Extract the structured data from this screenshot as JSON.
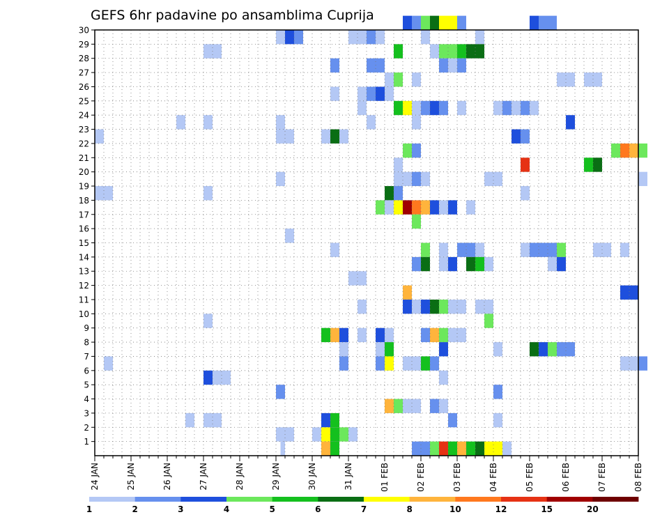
{
  "chart_data": {
    "type": "heatmap",
    "title": "GEFS 6hr padavine po ansamblima Cuprija",
    "xlabel": "",
    "ylabel": "",
    "x_ticks": [
      "24 JAN",
      "25 JAN",
      "26 JAN",
      "27 JAN",
      "28 JAN",
      "29 JAN",
      "30 JAN",
      "31 JAN",
      "01 FEB",
      "02 FEB",
      "03 FEB",
      "04 FEB",
      "05 FEB",
      "06 FEB",
      "07 FEB",
      "08 FEB"
    ],
    "y_ticks": [
      "1",
      "2",
      "3",
      "4",
      "5",
      "6",
      "7",
      "8",
      "9",
      "10",
      "11",
      "12",
      "13",
      "14",
      "15",
      "16",
      "17",
      "18",
      "19",
      "20",
      "21",
      "22",
      "23",
      "24",
      "25",
      "26",
      "27",
      "28",
      "29",
      "30"
    ],
    "x_step_hours": 6,
    "grid": true,
    "legend": "colorbar-bottom",
    "colorbar": {
      "levels": [
        "1",
        "2",
        "3",
        "4",
        "5",
        "6",
        "7",
        "8",
        "10",
        "12",
        "15",
        "20"
      ],
      "colors": [
        "#b4c8f5",
        "#6690ee",
        "#1e4fdd",
        "#6ce85c",
        "#14c01e",
        "#0a6e14",
        "#ffff00",
        "#ffb43c",
        "#ff781e",
        "#e63214",
        "#a00000",
        "#6e0000"
      ]
    },
    "cells": [
      {
        "m": 30,
        "x": [
          [
            34.0,
            35.0,
            3
          ],
          [
            35.0,
            36.0,
            2
          ],
          [
            36.0,
            37.0,
            4
          ],
          [
            37.0,
            38.0,
            6
          ],
          [
            38.0,
            40.0,
            7
          ],
          [
            40.0,
            41.0,
            2
          ],
          [
            48.0,
            49.0,
            3
          ],
          [
            49.0,
            51.0,
            2
          ]
        ]
      },
      {
        "m": 29,
        "x": [
          [
            20.0,
            21.0,
            1
          ],
          [
            21.0,
            22.0,
            3
          ],
          [
            22.0,
            23.0,
            2
          ],
          [
            28.0,
            30.0,
            1
          ],
          [
            30.0,
            31.0,
            2
          ],
          [
            31.0,
            32.0,
            1
          ],
          [
            36.0,
            37.0,
            1
          ],
          [
            42.0,
            43.0,
            1
          ]
        ]
      },
      {
        "m": 28,
        "x": [
          [
            12.0,
            14.0,
            1
          ],
          [
            33.0,
            34.0,
            5
          ],
          [
            37.0,
            38.0,
            1
          ],
          [
            38.0,
            40.0,
            4
          ],
          [
            40.0,
            41.0,
            5
          ],
          [
            41.0,
            43.0,
            6
          ]
        ]
      },
      {
        "m": 27,
        "x": [
          [
            26.0,
            27.0,
            2
          ],
          [
            30.0,
            32.0,
            2
          ],
          [
            38.0,
            39.0,
            2
          ],
          [
            39.0,
            40.0,
            1
          ],
          [
            40.0,
            41.0,
            2
          ]
        ]
      },
      {
        "m": 26,
        "x": [
          [
            32.0,
            33.0,
            1
          ],
          [
            33.0,
            34.0,
            4
          ],
          [
            35.0,
            36.0,
            1
          ],
          [
            51.0,
            53.0,
            1
          ],
          [
            54.0,
            56.0,
            1
          ]
        ]
      },
      {
        "m": 25,
        "x": [
          [
            26.0,
            27.0,
            1
          ],
          [
            29.0,
            30.0,
            1
          ],
          [
            30.0,
            31.0,
            2
          ],
          [
            31.0,
            32.0,
            3
          ],
          [
            32.0,
            33.0,
            1
          ]
        ]
      },
      {
        "m": 24,
        "x": [
          [
            29.0,
            30.0,
            1
          ],
          [
            33.0,
            34.0,
            5
          ],
          [
            34.0,
            35.0,
            7
          ],
          [
            35.0,
            36.0,
            1
          ],
          [
            36.0,
            37.0,
            2
          ],
          [
            37.0,
            38.0,
            3
          ],
          [
            38.0,
            39.0,
            2
          ],
          [
            40.0,
            41.0,
            1
          ],
          [
            44.0,
            45.0,
            1
          ],
          [
            45.0,
            46.0,
            2
          ],
          [
            46.0,
            47.0,
            1
          ],
          [
            47.0,
            48.0,
            2
          ],
          [
            48.0,
            49.0,
            1
          ]
        ]
      },
      {
        "m": 23,
        "x": [
          [
            9.0,
            10.0,
            1
          ],
          [
            12.0,
            13.0,
            1
          ],
          [
            20.0,
            21.0,
            1
          ],
          [
            30.0,
            31.0,
            1
          ],
          [
            35.0,
            36.0,
            1
          ],
          [
            52.0,
            53.0,
            3
          ]
        ]
      },
      {
        "m": 22,
        "x": [
          [
            0.0,
            1.0,
            1
          ],
          [
            20.0,
            22.0,
            1
          ],
          [
            25.0,
            26.0,
            1
          ],
          [
            26.0,
            27.0,
            6
          ],
          [
            27.0,
            28.0,
            1
          ],
          [
            46.0,
            47.0,
            3
          ],
          [
            47.0,
            48.0,
            2
          ]
        ]
      },
      {
        "m": 21,
        "x": [
          [
            34.0,
            35.0,
            4
          ],
          [
            35.0,
            36.0,
            2
          ],
          [
            57.0,
            58.0,
            4
          ],
          [
            58.0,
            59.0,
            9
          ],
          [
            59.0,
            60.0,
            8
          ],
          [
            60.0,
            61.0,
            4
          ]
        ]
      },
      {
        "m": 20,
        "x": [
          [
            33.0,
            34.0,
            1
          ],
          [
            47.0,
            48.0,
            10
          ],
          [
            54.0,
            55.0,
            5
          ],
          [
            55.0,
            56.0,
            6
          ]
        ]
      },
      {
        "m": 19,
        "x": [
          [
            20.0,
            21.0,
            1
          ],
          [
            33.0,
            35.0,
            1
          ],
          [
            35.0,
            36.0,
            2
          ],
          [
            36.0,
            37.0,
            1
          ],
          [
            43.0,
            45.0,
            1
          ],
          [
            60.0,
            61.0,
            1
          ]
        ]
      },
      {
        "m": 18,
        "x": [
          [
            0.0,
            2.0,
            1
          ],
          [
            12.0,
            13.0,
            1
          ],
          [
            32.0,
            33.0,
            6
          ],
          [
            33.0,
            34.0,
            2
          ],
          [
            47.0,
            48.0,
            1
          ]
        ]
      },
      {
        "m": 17,
        "x": [
          [
            31.0,
            32.0,
            4
          ],
          [
            32.0,
            33.0,
            1
          ],
          [
            33.0,
            34.0,
            7
          ],
          [
            34.0,
            35.0,
            11
          ],
          [
            35.0,
            36.0,
            9
          ],
          [
            36.0,
            37.0,
            8
          ],
          [
            37.0,
            38.0,
            3
          ],
          [
            38.0,
            39.0,
            1
          ],
          [
            39.0,
            40.0,
            3
          ],
          [
            41.0,
            42.0,
            1
          ]
        ]
      },
      {
        "m": 16,
        "x": [
          [
            35.0,
            36.0,
            4
          ]
        ]
      },
      {
        "m": 15,
        "x": [
          [
            21.0,
            22.0,
            1
          ]
        ]
      },
      {
        "m": 14,
        "x": [
          [
            26.0,
            27.0,
            1
          ],
          [
            36.0,
            37.0,
            4
          ],
          [
            38.0,
            39.0,
            1
          ],
          [
            40.0,
            42.0,
            2
          ],
          [
            42.0,
            43.0,
            1
          ],
          [
            47.0,
            48.0,
            1
          ],
          [
            48.0,
            51.0,
            2
          ],
          [
            51.0,
            52.0,
            4
          ],
          [
            55.0,
            57.0,
            1
          ],
          [
            58.0,
            59.0,
            1
          ]
        ]
      },
      {
        "m": 13,
        "x": [
          [
            35.0,
            36.0,
            2
          ],
          [
            36.0,
            37.0,
            6
          ],
          [
            38.0,
            39.0,
            1
          ],
          [
            39.0,
            40.0,
            3
          ],
          [
            41.0,
            42.0,
            6
          ],
          [
            42.0,
            43.0,
            5
          ],
          [
            43.0,
            44.0,
            1
          ],
          [
            50.0,
            51.0,
            1
          ],
          [
            51.0,
            52.0,
            3
          ]
        ]
      },
      {
        "m": 12,
        "x": [
          [
            28.0,
            30.0,
            1
          ]
        ]
      },
      {
        "m": 11,
        "x": [
          [
            34.0,
            35.0,
            8
          ],
          [
            58.0,
            60.0,
            3
          ]
        ]
      },
      {
        "m": 10,
        "x": [
          [
            29.0,
            30.0,
            1
          ],
          [
            34.0,
            35.0,
            3
          ],
          [
            35.0,
            36.0,
            1
          ],
          [
            36.0,
            37.0,
            3
          ],
          [
            37.0,
            38.0,
            6
          ],
          [
            38.0,
            39.0,
            4
          ],
          [
            39.0,
            41.0,
            1
          ],
          [
            42.0,
            44.0,
            1
          ]
        ]
      },
      {
        "m": 9,
        "x": [
          [
            12.0,
            13.0,
            1
          ],
          [
            43.0,
            44.0,
            4
          ]
        ]
      },
      {
        "m": 8,
        "x": [
          [
            25.0,
            26.0,
            5
          ],
          [
            26.0,
            27.0,
            8
          ],
          [
            27.0,
            28.0,
            3
          ],
          [
            29.0,
            30.0,
            1
          ],
          [
            31.0,
            32.0,
            3
          ],
          [
            32.0,
            33.0,
            1
          ],
          [
            36.0,
            37.0,
            2
          ],
          [
            37.0,
            38.0,
            8
          ],
          [
            38.0,
            39.0,
            4
          ],
          [
            39.0,
            41.0,
            1
          ]
        ]
      },
      {
        "m": 7,
        "x": [
          [
            27.0,
            28.0,
            1
          ],
          [
            31.0,
            32.0,
            1
          ],
          [
            32.0,
            33.0,
            5
          ],
          [
            38.0,
            39.0,
            3
          ],
          [
            44.0,
            45.0,
            1
          ],
          [
            48.0,
            49.0,
            6
          ],
          [
            49.0,
            50.0,
            3
          ],
          [
            50.0,
            51.0,
            4
          ],
          [
            51.0,
            53.0,
            2
          ]
        ]
      },
      {
        "m": 6,
        "x": [
          [
            1.0,
            2.0,
            1
          ],
          [
            27.0,
            28.0,
            2
          ],
          [
            31.0,
            32.0,
            2
          ],
          [
            32.0,
            33.0,
            7
          ],
          [
            34.0,
            36.0,
            1
          ],
          [
            36.0,
            37.0,
            5
          ],
          [
            37.0,
            38.0,
            2
          ],
          [
            58.0,
            60.0,
            1
          ],
          [
            60.0,
            61.0,
            2
          ]
        ]
      },
      {
        "m": 5,
        "x": [
          [
            12.0,
            13.0,
            3
          ],
          [
            13.0,
            15.0,
            1
          ],
          [
            38.0,
            39.0,
            1
          ]
        ]
      },
      {
        "m": 4,
        "x": [
          [
            20.0,
            21.0,
            2
          ],
          [
            44.0,
            45.0,
            2
          ]
        ]
      },
      {
        "m": 3,
        "x": [
          [
            32.0,
            33.0,
            8
          ],
          [
            33.0,
            34.0,
            4
          ],
          [
            34.0,
            36.0,
            1
          ],
          [
            37.0,
            38.0,
            2
          ],
          [
            38.0,
            39.0,
            1
          ]
        ]
      },
      {
        "m": 2,
        "x": [
          [
            10.0,
            11.0,
            1
          ],
          [
            12.0,
            14.0,
            1
          ],
          [
            25.0,
            26.0,
            3
          ],
          [
            26.0,
            27.0,
            5
          ],
          [
            39.0,
            40.0,
            2
          ],
          [
            44.0,
            45.0,
            1
          ]
        ]
      },
      {
        "m": 1,
        "x": [
          [
            20.0,
            22.0,
            1
          ],
          [
            24.0,
            25.0,
            1
          ],
          [
            25.0,
            26.0,
            7
          ],
          [
            26.0,
            27.0,
            5
          ],
          [
            27.0,
            28.0,
            4
          ],
          [
            28.0,
            29.0,
            1
          ]
        ]
      },
      {
        "m": 0,
        "x": [
          [
            20.5,
            21.0,
            1
          ],
          [
            25.0,
            26.0,
            8
          ],
          [
            26.0,
            27.0,
            5
          ],
          [
            35.0,
            37.0,
            2
          ],
          [
            37.0,
            38.0,
            4
          ],
          [
            38.0,
            39.0,
            10
          ],
          [
            39.0,
            40.0,
            5
          ],
          [
            40.0,
            41.0,
            8
          ],
          [
            41.0,
            42.0,
            5
          ],
          [
            42.0,
            43.0,
            6
          ],
          [
            43.0,
            45.0,
            7
          ],
          [
            45.0,
            46.0,
            1
          ]
        ]
      }
    ]
  }
}
